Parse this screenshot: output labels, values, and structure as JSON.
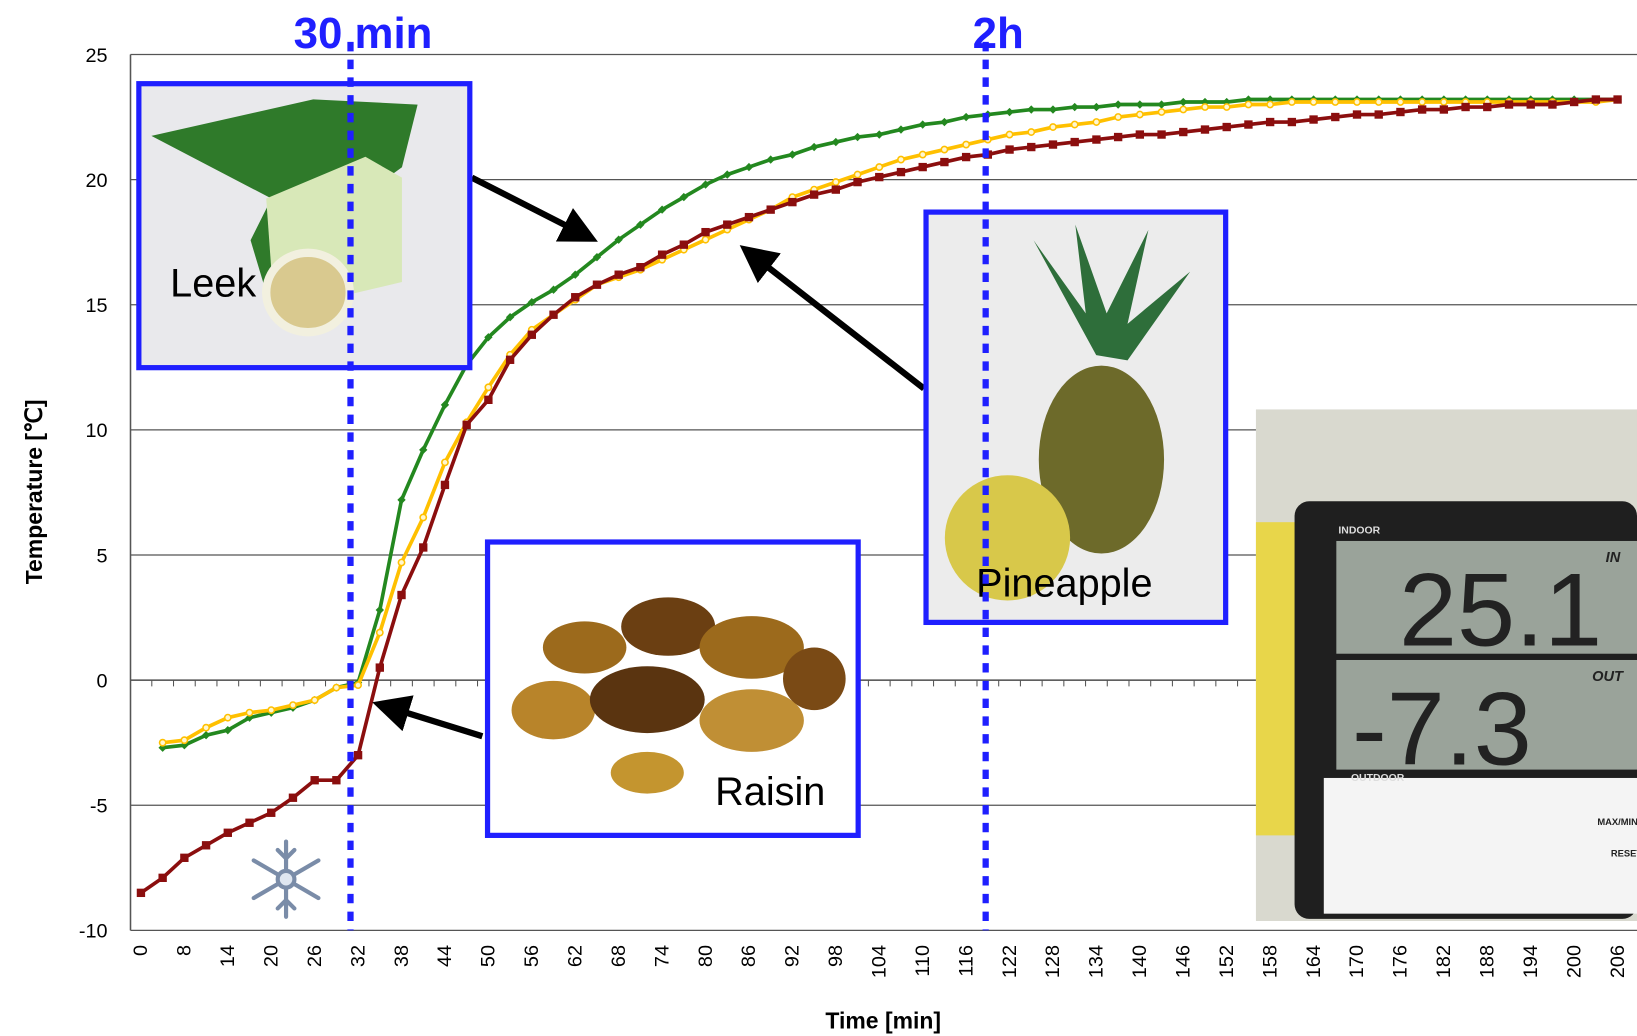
{
  "chart_data": {
    "type": "line",
    "annotations": {
      "line_30": "30 min",
      "line_2h": "2h"
    },
    "xlabel": "Time [min]",
    "ylabel": "Temperature [℃]",
    "categories": [
      0,
      null,
      8,
      null,
      14,
      null,
      20,
      null,
      26,
      null,
      32,
      null,
      38,
      null,
      44,
      null,
      50,
      null,
      56,
      null,
      62,
      null,
      68,
      null,
      74,
      null,
      80,
      null,
      86,
      null,
      92,
      null,
      98,
      null,
      104,
      null,
      110,
      null,
      116,
      null,
      122,
      null,
      128,
      null,
      134,
      null,
      140,
      null,
      146,
      null,
      152,
      null,
      158,
      null,
      164,
      null,
      170,
      null,
      176,
      null,
      182,
      null,
      188,
      null,
      194,
      null,
      200,
      null,
      206
    ],
    "ylim": [
      -10,
      25
    ],
    "yticks": [
      -10,
      -5,
      0,
      5,
      10,
      15,
      20,
      25
    ],
    "grid": true,
    "series": [
      {
        "name": "Leek",
        "color": "#23881f",
        "marker": "diamond",
        "values": [
          null,
          -2.7,
          -2.6,
          -2.2,
          -2.0,
          -1.5,
          -1.3,
          -1.1,
          -0.8,
          -0.3,
          -0.1,
          2.8,
          7.2,
          9.2,
          11.0,
          12.6,
          13.7,
          14.5,
          15.1,
          15.6,
          16.2,
          16.9,
          17.6,
          18.2,
          18.8,
          19.3,
          19.8,
          20.2,
          20.5,
          20.8,
          21.0,
          21.3,
          21.5,
          21.7,
          21.8,
          22.0,
          22.2,
          22.3,
          22.5,
          22.6,
          22.7,
          22.8,
          22.8,
          22.9,
          22.9,
          23.0,
          23.0,
          23.0,
          23.1,
          23.1,
          23.1,
          23.2,
          23.2,
          23.2,
          23.2,
          23.2,
          23.2,
          23.2,
          23.2,
          23.2,
          23.2,
          23.2,
          23.2,
          23.2,
          23.2,
          23.2,
          23.2,
          23.2,
          23.2
        ]
      },
      {
        "name": "Pineapple",
        "color": "#ffc000",
        "marker": "circle",
        "values": [
          null,
          -2.5,
          -2.4,
          -1.9,
          -1.5,
          -1.3,
          -1.2,
          -1.0,
          -0.8,
          -0.3,
          -0.2,
          1.9,
          4.7,
          6.5,
          8.7,
          10.3,
          11.7,
          13.0,
          14.0,
          14.6,
          15.2,
          15.8,
          16.1,
          16.4,
          16.8,
          17.2,
          17.6,
          18.0,
          18.4,
          18.8,
          19.3,
          19.6,
          19.9,
          20.2,
          20.5,
          20.8,
          21.0,
          21.2,
          21.4,
          21.6,
          21.8,
          21.9,
          22.1,
          22.2,
          22.3,
          22.5,
          22.6,
          22.7,
          22.8,
          22.9,
          22.9,
          23.0,
          23.0,
          23.1,
          23.1,
          23.1,
          23.1,
          23.1,
          23.1,
          23.1,
          23.1,
          23.1,
          23.1,
          23.1,
          23.1,
          23.1,
          23.1,
          23.1,
          23.2
        ]
      },
      {
        "name": "Raisin",
        "color": "#8b0e0e",
        "marker": "square",
        "values": [
          -8.5,
          -7.9,
          -7.1,
          -6.6,
          -6.1,
          -5.7,
          -5.3,
          -4.7,
          -4.0,
          -4.0,
          -3.0,
          0.5,
          3.4,
          5.3,
          7.8,
          10.2,
          11.2,
          12.8,
          13.8,
          14.6,
          15.3,
          15.8,
          16.2,
          16.5,
          17.0,
          17.4,
          17.9,
          18.2,
          18.5,
          18.8,
          19.1,
          19.4,
          19.6,
          19.9,
          20.1,
          20.3,
          20.5,
          20.7,
          20.9,
          21.0,
          21.2,
          21.3,
          21.4,
          21.5,
          21.6,
          21.7,
          21.8,
          21.8,
          21.9,
          22.0,
          22.1,
          22.2,
          22.3,
          22.3,
          22.4,
          22.5,
          22.6,
          22.6,
          22.7,
          22.8,
          22.8,
          22.9,
          22.9,
          23.0,
          23.0,
          23.0,
          23.1,
          23.2,
          23.2
        ]
      }
    ],
    "photo": {
      "indoor": "INDOOR",
      "outdoor": "OUTDOOR",
      "in": "IN",
      "out": "OUT",
      "reading_in": "25.1",
      "reading_out": "-7.3",
      "button_1": "MAX/MIN",
      "button_2": "RESET"
    }
  }
}
